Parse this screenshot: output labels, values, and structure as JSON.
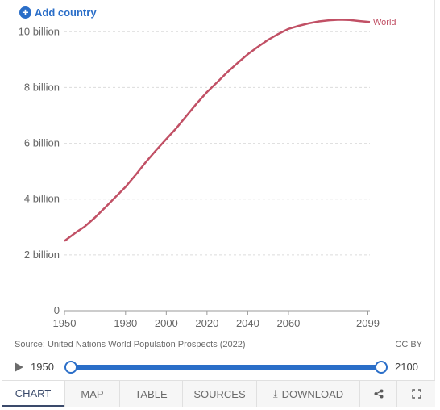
{
  "header": {
    "add_country_label": "Add country"
  },
  "chart_data": {
    "type": "line",
    "series": [
      {
        "name": "World",
        "color": "#c15065",
        "x": [
          1950,
          1955,
          1960,
          1965,
          1970,
          1975,
          1980,
          1985,
          1990,
          1995,
          2000,
          2005,
          2010,
          2015,
          2020,
          2025,
          2030,
          2035,
          2040,
          2045,
          2050,
          2055,
          2060,
          2065,
          2070,
          2075,
          2080,
          2085,
          2090,
          2095,
          2100
        ],
        "values": [
          2.5,
          2.77,
          3.02,
          3.34,
          3.7,
          4.07,
          4.44,
          4.87,
          5.33,
          5.75,
          6.15,
          6.55,
          6.99,
          7.43,
          7.84,
          8.19,
          8.55,
          8.88,
          9.19,
          9.46,
          9.71,
          9.92,
          10.1,
          10.21,
          10.3,
          10.37,
          10.41,
          10.43,
          10.42,
          10.38,
          10.35
        ]
      }
    ],
    "y_ticks": [
      {
        "value": 0,
        "label": "0"
      },
      {
        "value": 2,
        "label": "2 billion"
      },
      {
        "value": 4,
        "label": "4 billion"
      },
      {
        "value": 6,
        "label": "6 billion"
      },
      {
        "value": 8,
        "label": "8 billion"
      },
      {
        "value": 10,
        "label": "10 billion"
      }
    ],
    "x_ticks": [
      {
        "value": 1950,
        "label": "1950"
      },
      {
        "value": 1980,
        "label": "1980"
      },
      {
        "value": 2000,
        "label": "2000"
      },
      {
        "value": 2020,
        "label": "2020"
      },
      {
        "value": 2040,
        "label": "2040"
      },
      {
        "value": 2060,
        "label": "2060"
      },
      {
        "value": 2099,
        "label": "2099"
      }
    ],
    "ylim": [
      0,
      10.5
    ],
    "xlim": [
      1950,
      2100
    ],
    "grid": true
  },
  "footer": {
    "source": "Source: United Nations World Population Prospects (2022)",
    "license": "CC BY"
  },
  "timeline": {
    "start_label": "1950",
    "end_label": "2100"
  },
  "tabs": {
    "chart": "CHART",
    "map": "MAP",
    "table": "TABLE",
    "sources": "SOURCES",
    "download": "DOWNLOAD"
  },
  "colors": {
    "accent": "#2a6ec8",
    "series": "#c15065"
  }
}
